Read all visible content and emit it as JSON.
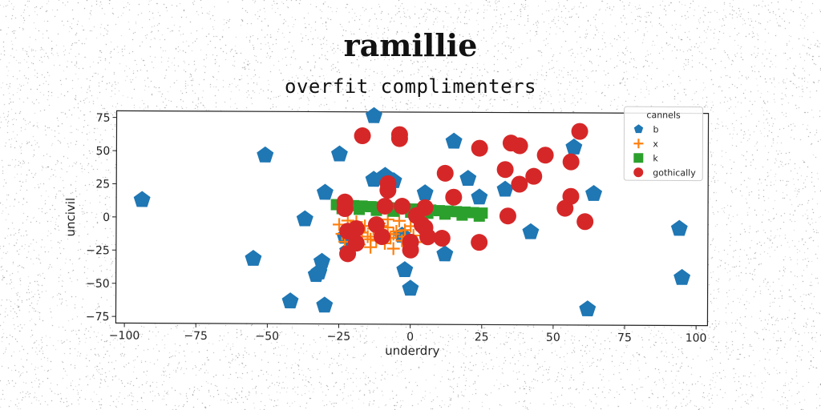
{
  "chart_data": {
    "type": "scatter",
    "title": "ramillie",
    "subtitle": "overfit complimenters",
    "xlabel": "underdry",
    "ylabel": "uncivil",
    "xlim": [
      -103,
      104
    ],
    "ylim": [
      -80,
      80
    ],
    "xticks": [
      -100,
      -75,
      -50,
      -25,
      0,
      25,
      50,
      75,
      100
    ],
    "yticks": [
      -75,
      -50,
      -25,
      0,
      25,
      50,
      75
    ],
    "grid": false,
    "legend": {
      "title": "cannels",
      "placement": "top-right"
    },
    "series": [
      {
        "name": "b",
        "marker": "pentagon",
        "color": "#1f77b4",
        "points": [
          [
            -94,
            13
          ],
          [
            -51,
            47
          ],
          [
            -55,
            -31
          ],
          [
            -37,
            -1
          ],
          [
            -33,
            -43
          ],
          [
            -32,
            -41
          ],
          [
            -31,
            -33
          ],
          [
            -30,
            -66
          ],
          [
            -42,
            -63
          ],
          [
            -30,
            19
          ],
          [
            -25,
            48
          ],
          [
            -13,
            77
          ],
          [
            -13,
            29
          ],
          [
            -9,
            32
          ],
          [
            -6,
            28
          ],
          [
            -3,
            -13
          ],
          [
            -23,
            -14
          ],
          [
            -22,
            -25
          ],
          [
            -2,
            -39
          ],
          [
            0,
            -53
          ],
          [
            5,
            19
          ],
          [
            12,
            -27
          ],
          [
            15,
            58
          ],
          [
            20,
            30
          ],
          [
            24,
            16
          ],
          [
            33,
            22
          ],
          [
            42,
            -10
          ],
          [
            57,
            54
          ],
          [
            64,
            19
          ],
          [
            62,
            -68
          ],
          [
            94,
            -7
          ],
          [
            95,
            -44
          ]
        ]
      },
      {
        "name": "x",
        "marker": "plus",
        "color": "#ff7f0e",
        "points": [
          [
            -25,
            -5
          ],
          [
            -24,
            -12
          ],
          [
            -23,
            -18
          ],
          [
            -21,
            -9
          ],
          [
            -20,
            -15
          ],
          [
            -19,
            -3
          ],
          [
            -18,
            -20
          ],
          [
            -17,
            -11
          ],
          [
            -16,
            -6
          ],
          [
            -15,
            -14
          ],
          [
            -14,
            -22
          ],
          [
            -13,
            -8
          ],
          [
            -12,
            -17
          ],
          [
            -11,
            -4
          ],
          [
            -10,
            -12
          ],
          [
            -9,
            -19
          ],
          [
            -8,
            -7
          ],
          [
            -7,
            -15
          ],
          [
            -6,
            -23
          ],
          [
            -5,
            -10
          ],
          [
            -4,
            -2
          ],
          [
            -3,
            -17
          ],
          [
            -2,
            -9
          ],
          [
            -1,
            -21
          ],
          [
            0,
            -6
          ],
          [
            1,
            -13
          ],
          [
            2,
            -18
          ],
          [
            -22,
            -2
          ],
          [
            -18,
            -8
          ],
          [
            -14,
            -16
          ],
          [
            -10,
            -6
          ],
          [
            -6,
            -12
          ],
          [
            -2,
            -14
          ],
          [
            -20,
            -22
          ],
          [
            -8,
            -1
          ]
        ]
      },
      {
        "name": "k",
        "marker": "square",
        "color": "#2ca02c",
        "points": [
          [
            -26,
            10
          ],
          [
            -23,
            9.7
          ],
          [
            -20,
            9.3
          ],
          [
            -17,
            9
          ],
          [
            -14,
            8.6
          ],
          [
            -11,
            8.3
          ],
          [
            -8,
            7.9
          ],
          [
            -5,
            7.6
          ],
          [
            -2,
            7.2
          ],
          [
            1,
            6.9
          ],
          [
            4,
            6.5
          ],
          [
            7,
            6.2
          ],
          [
            10,
            5.8
          ],
          [
            13,
            5.5
          ],
          [
            16,
            5.1
          ],
          [
            19,
            4.8
          ],
          [
            22,
            4.4
          ],
          [
            25,
            4.1
          ],
          [
            -24,
            7
          ],
          [
            -18,
            6.5
          ],
          [
            -12,
            5.8
          ],
          [
            -6,
            5.2
          ],
          [
            0,
            4.5
          ],
          [
            6,
            3.8
          ],
          [
            12,
            3.2
          ],
          [
            18,
            2.5
          ],
          [
            24,
            1.8
          ]
        ]
      },
      {
        "name": "gothically",
        "marker": "circle",
        "color": "#d62728",
        "points": [
          [
            -17,
            62
          ],
          [
            -4,
            63
          ],
          [
            -4,
            60
          ],
          [
            -8,
            26
          ],
          [
            -8,
            21
          ],
          [
            -23,
            12
          ],
          [
            -23,
            7
          ],
          [
            -9,
            9
          ],
          [
            -3,
            9
          ],
          [
            5,
            8
          ],
          [
            2,
            2
          ],
          [
            4,
            -5
          ],
          [
            0,
            -18
          ],
          [
            0,
            -24
          ],
          [
            -22,
            -27
          ],
          [
            -22,
            -10
          ],
          [
            -19,
            -8
          ],
          [
            -19,
            -19
          ],
          [
            -12,
            -5
          ],
          [
            -10,
            -14
          ],
          [
            5,
            -7
          ],
          [
            6,
            -14
          ],
          [
            11,
            -15
          ],
          [
            12,
            34
          ],
          [
            15,
            16
          ],
          [
            24,
            53
          ],
          [
            24,
            -18
          ],
          [
            35,
            57
          ],
          [
            38,
            55
          ],
          [
            33,
            37
          ],
          [
            38,
            26
          ],
          [
            43,
            32
          ],
          [
            47,
            48
          ],
          [
            56,
            43
          ],
          [
            59,
            66
          ],
          [
            54,
            8
          ],
          [
            56,
            17
          ],
          [
            61,
            -2
          ],
          [
            34,
            2
          ]
        ]
      }
    ]
  }
}
